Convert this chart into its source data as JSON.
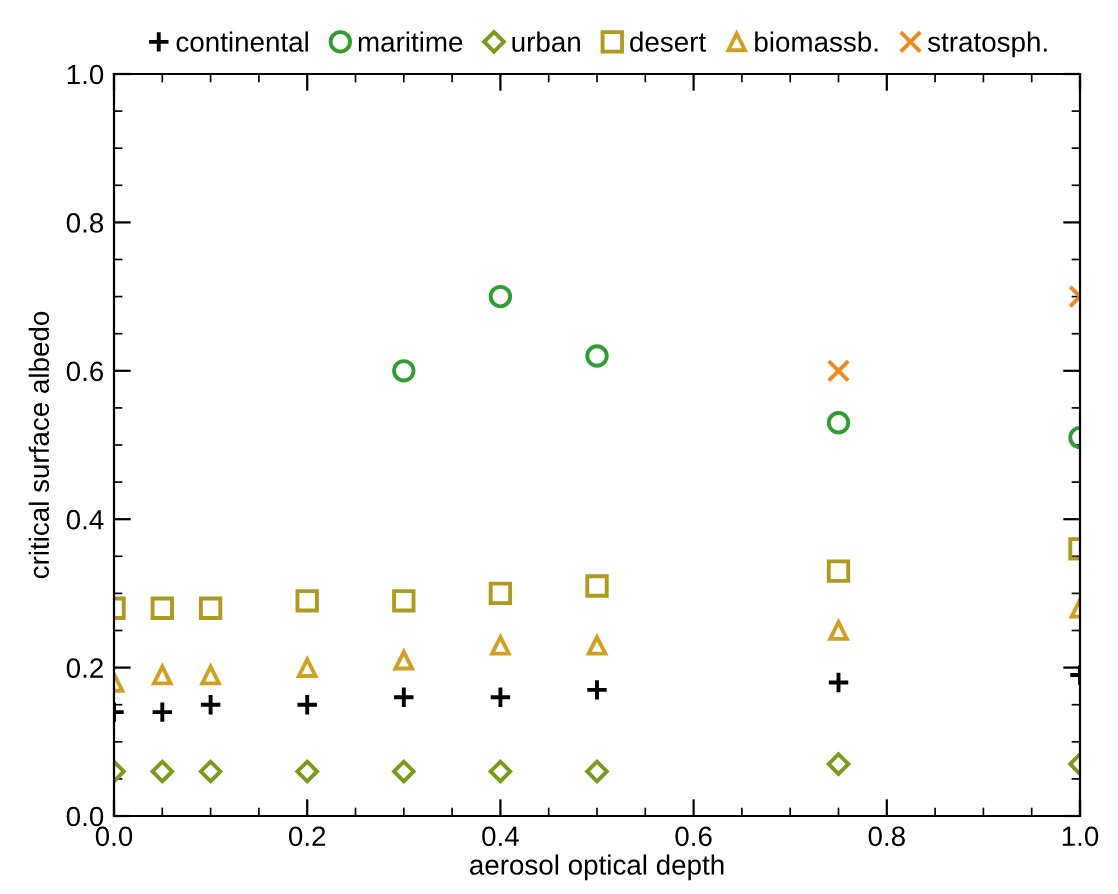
{
  "chart_data": {
    "type": "scatter",
    "xlabel": "aerosol optical depth",
    "ylabel": "critical surface albedo",
    "xlim": [
      0,
      1
    ],
    "ylim": [
      0,
      1
    ],
    "xticks": [
      {
        "value": 0,
        "label": "0.0"
      },
      0.2,
      0.4,
      0.6,
      0.8,
      {
        "value": 1,
        "label": "1.0"
      }
    ],
    "yticks": [
      {
        "value": 0,
        "label": "0.0"
      },
      0.2,
      0.4,
      0.6,
      0.8,
      {
        "value": 1,
        "label": "1.0"
      }
    ],
    "grid": false,
    "legend": "top",
    "series": [
      {
        "name": "continental",
        "color": "#000000",
        "marker": "plus",
        "x": [
          0,
          0.05,
          0.1,
          0.2,
          0.3,
          0.4,
          0.5,
          0.75,
          1.0
        ],
        "values": [
          0.14,
          0.14,
          0.15,
          0.15,
          0.16,
          0.16,
          0.17,
          0.18,
          0.19
        ]
      },
      {
        "name": "maritime",
        "color": "#2e9e2e",
        "marker": "circle",
        "x": [
          0.3,
          0.4,
          0.5,
          0.75,
          1.0
        ],
        "values": [
          0.6,
          0.7,
          0.62,
          0.53,
          0.51
        ]
      },
      {
        "name": "urban",
        "color": "#7a9a1a",
        "marker": "diamond",
        "x": [
          0,
          0.05,
          0.1,
          0.2,
          0.3,
          0.4,
          0.5,
          0.75,
          1.0
        ],
        "values": [
          0.06,
          0.06,
          0.06,
          0.06,
          0.06,
          0.06,
          0.06,
          0.07,
          0.07
        ]
      },
      {
        "name": "desert",
        "color": "#b09a1c",
        "marker": "square",
        "x": [
          0,
          0.05,
          0.1,
          0.2,
          0.3,
          0.4,
          0.5,
          0.75,
          1.0
        ],
        "values": [
          0.28,
          0.28,
          0.28,
          0.29,
          0.29,
          0.3,
          0.31,
          0.33,
          0.36
        ]
      },
      {
        "name": "biomassb.",
        "color": "#d0a020",
        "marker": "triangle",
        "x": [
          0,
          0.05,
          0.1,
          0.2,
          0.3,
          0.4,
          0.5,
          0.75,
          1.0
        ],
        "values": [
          0.18,
          0.19,
          0.19,
          0.2,
          0.21,
          0.23,
          0.23,
          0.25,
          0.28
        ]
      },
      {
        "name": "stratosph.",
        "color": "#f08a20",
        "marker": "cross",
        "x": [
          0.75,
          1.0
        ],
        "values": [
          0.6,
          0.7
        ]
      }
    ]
  }
}
